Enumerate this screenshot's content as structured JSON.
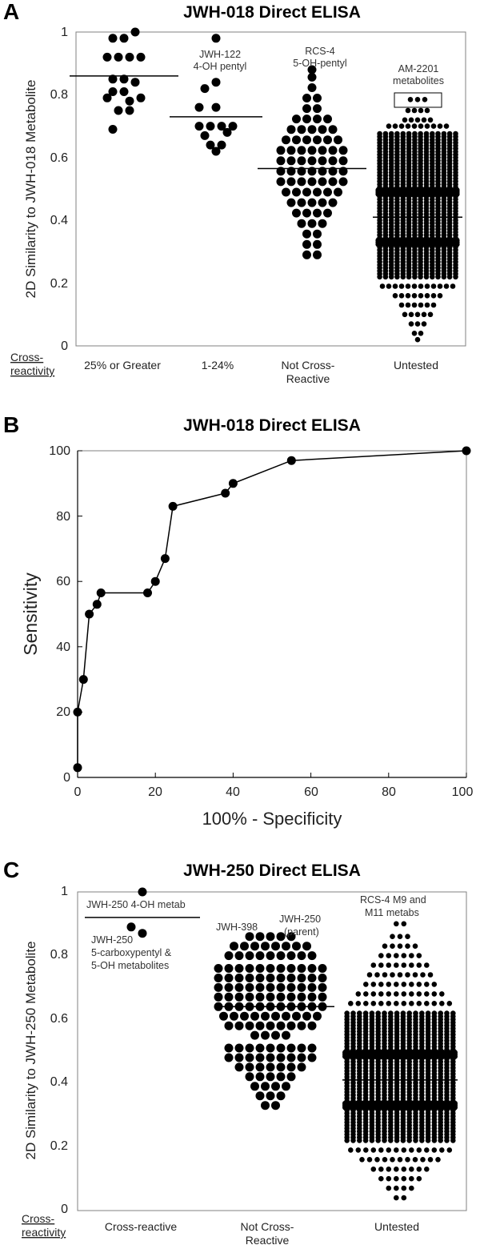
{
  "panels": {
    "a": {
      "letter": "A",
      "title": "JWH-018 Direct ELISA",
      "ylabel": "2D Similarity to JWH-018 Metabolite",
      "yticks": [
        "0",
        "0.2",
        "0.4",
        "0.6",
        "0.8",
        "1"
      ],
      "cross_label_line1": "Cross-",
      "cross_label_line2": "reactivity",
      "categories": [
        {
          "line1": "25% or Greater",
          "line2": ""
        },
        {
          "line1": "1-24%",
          "line2": ""
        },
        {
          "line1": "Not Cross-",
          "line2": "Reactive"
        },
        {
          "line1": "Untested",
          "line2": ""
        }
      ],
      "annotations": [
        {
          "line1": "JWH-122",
          "line2": "4-OH pentyl"
        },
        {
          "line1": "RCS-4",
          "line2": "5-OH-pentyl"
        },
        {
          "line1": "AM-2201",
          "line2": "metabolites"
        }
      ]
    },
    "b": {
      "letter": "B",
      "title": "JWH-018 Direct ELISA",
      "ylabel": "Sensitivity",
      "xlabel": "100% - Specificity",
      "yticks": [
        "0",
        "20",
        "40",
        "60",
        "80",
        "100"
      ],
      "xticks": [
        "0",
        "20",
        "40",
        "60",
        "80",
        "100"
      ]
    },
    "c": {
      "letter": "C",
      "title": "JWH-250 Direct ELISA",
      "ylabel": "2D Similarity to JWH-250 Metabolite",
      "yticks": [
        "0",
        "0.2",
        "0.4",
        "0.6",
        "0.8",
        "1"
      ],
      "cross_label_line1": "Cross-",
      "cross_label_line2": "reactivity",
      "categories": [
        {
          "line1": "Cross-reactive",
          "line2": ""
        },
        {
          "line1": "Not Cross-",
          "line2": "Reactive"
        },
        {
          "line1": "Untested",
          "line2": ""
        }
      ],
      "annotations": [
        {
          "line1": "JWH-250 4-OH metab",
          "line2": "",
          "line3": ""
        },
        {
          "line1": "JWH-250",
          "line2": "5-carboxypentyl &",
          "line3": "5-OH metabolites"
        },
        {
          "line1": "JWH-398",
          "line2": "",
          "line3": ""
        },
        {
          "line1": "JWH-250",
          "line2": "(parent)",
          "line3": ""
        },
        {
          "line1": "RCS-4 M9 and",
          "line2": "M11 metabs",
          "line3": ""
        }
      ]
    }
  },
  "chart_data": [
    {
      "panel": "A",
      "type": "scatter",
      "title": "JWH-018 Direct ELISA",
      "ylabel": "2D Similarity to JWH-018 Metabolite",
      "ylim": [
        0,
        1
      ],
      "grid": false,
      "categories": [
        "25% or Greater",
        "1-24%",
        "Not Cross-Reactive",
        "Untested"
      ],
      "series": [
        {
          "category": "25% or Greater",
          "median": 0.86,
          "points": [
            {
              "xoff": -1,
              "y": 0.98
            },
            {
              "xoff": 0,
              "y": 0.98
            },
            {
              "xoff": 1,
              "y": 1.0
            },
            {
              "xoff": -1.5,
              "y": 0.92
            },
            {
              "xoff": -0.5,
              "y": 0.92
            },
            {
              "xoff": 0.5,
              "y": 0.92
            },
            {
              "xoff": 1.5,
              "y": 0.92
            },
            {
              "xoff": -1,
              "y": 0.85
            },
            {
              "xoff": 0,
              "y": 0.85
            },
            {
              "xoff": 1,
              "y": 0.84
            },
            {
              "xoff": -1,
              "y": 0.81
            },
            {
              "xoff": 0,
              "y": 0.81
            },
            {
              "xoff": -1.5,
              "y": 0.79
            },
            {
              "xoff": 0.5,
              "y": 0.78
            },
            {
              "xoff": 1.5,
              "y": 0.79
            },
            {
              "xoff": -0.5,
              "y": 0.75
            },
            {
              "xoff": 0.5,
              "y": 0.75
            },
            {
              "xoff": -1,
              "y": 0.69
            }
          ]
        },
        {
          "category": "1-24%",
          "median": 0.73,
          "points": [
            {
              "xoff": 0,
              "y": 0.98
            },
            {
              "xoff": 0,
              "y": 0.84
            },
            {
              "xoff": -1,
              "y": 0.82
            },
            {
              "xoff": -1.5,
              "y": 0.76
            },
            {
              "xoff": 0,
              "y": 0.76
            },
            {
              "xoff": -1.5,
              "y": 0.7
            },
            {
              "xoff": -0.5,
              "y": 0.7
            },
            {
              "xoff": 0.5,
              "y": 0.7
            },
            {
              "xoff": 1.5,
              "y": 0.7
            },
            {
              "xoff": -1,
              "y": 0.67
            },
            {
              "xoff": 1,
              "y": 0.68
            },
            {
              "xoff": -0.5,
              "y": 0.64
            },
            {
              "xoff": 0.5,
              "y": 0.64
            },
            {
              "xoff": 0,
              "y": 0.62
            }
          ]
        },
        {
          "category": "Not Cross-Reactive",
          "median": 0.565,
          "points_summary": "approximately 70 compounds spread from 0.29 to 0.88 (beeswarm)",
          "range": [
            0.29,
            0.88
          ]
        },
        {
          "category": "Untested",
          "median": 0.41,
          "points_summary": "several thousand compounds, dense band 0.22-0.68 with peaks at 0.33 and 0.49",
          "range": [
            0.02,
            0.79
          ]
        }
      ]
    },
    {
      "panel": "B",
      "type": "line",
      "title": "JWH-018 Direct ELISA",
      "xlabel": "100% - Specificity",
      "ylabel": "Sensitivity",
      "xlim": [
        0,
        100
      ],
      "ylim": [
        0,
        100
      ],
      "grid": false,
      "x": [
        0,
        0,
        1.5,
        3,
        5,
        6,
        18,
        20,
        22.5,
        24.5,
        38,
        40,
        55,
        100
      ],
      "y": [
        3,
        20,
        30,
        50,
        53,
        56.5,
        56.5,
        60,
        67,
        83,
        87,
        90,
        97,
        100
      ]
    },
    {
      "panel": "C",
      "type": "scatter",
      "title": "JWH-250 Direct ELISA",
      "ylabel": "2D Similarity to JWH-250 Metabolite",
      "ylim": [
        0,
        1
      ],
      "grid": false,
      "categories": [
        "Cross-reactive",
        "Not Cross-Reactive",
        "Untested"
      ],
      "series": [
        {
          "category": "Cross-reactive",
          "median": 0.92,
          "points": [
            {
              "xoff": 0,
              "y": 1.0
            },
            {
              "xoff": -1,
              "y": 0.89
            },
            {
              "xoff": 0,
              "y": 0.87
            }
          ]
        },
        {
          "category": "Not Cross-Reactive",
          "median": 0.64,
          "points_summary": "approximately 115 compounds spread from 0.32 to 0.86 (beeswarm)",
          "range": [
            0.32,
            0.86
          ]
        },
        {
          "category": "Untested",
          "median": 0.41,
          "points_summary": "several thousand compounds, dense band 0.22-0.62 with peaks at 0.33 and 0.49",
          "range": [
            0.04,
            0.9
          ]
        }
      ]
    }
  ]
}
